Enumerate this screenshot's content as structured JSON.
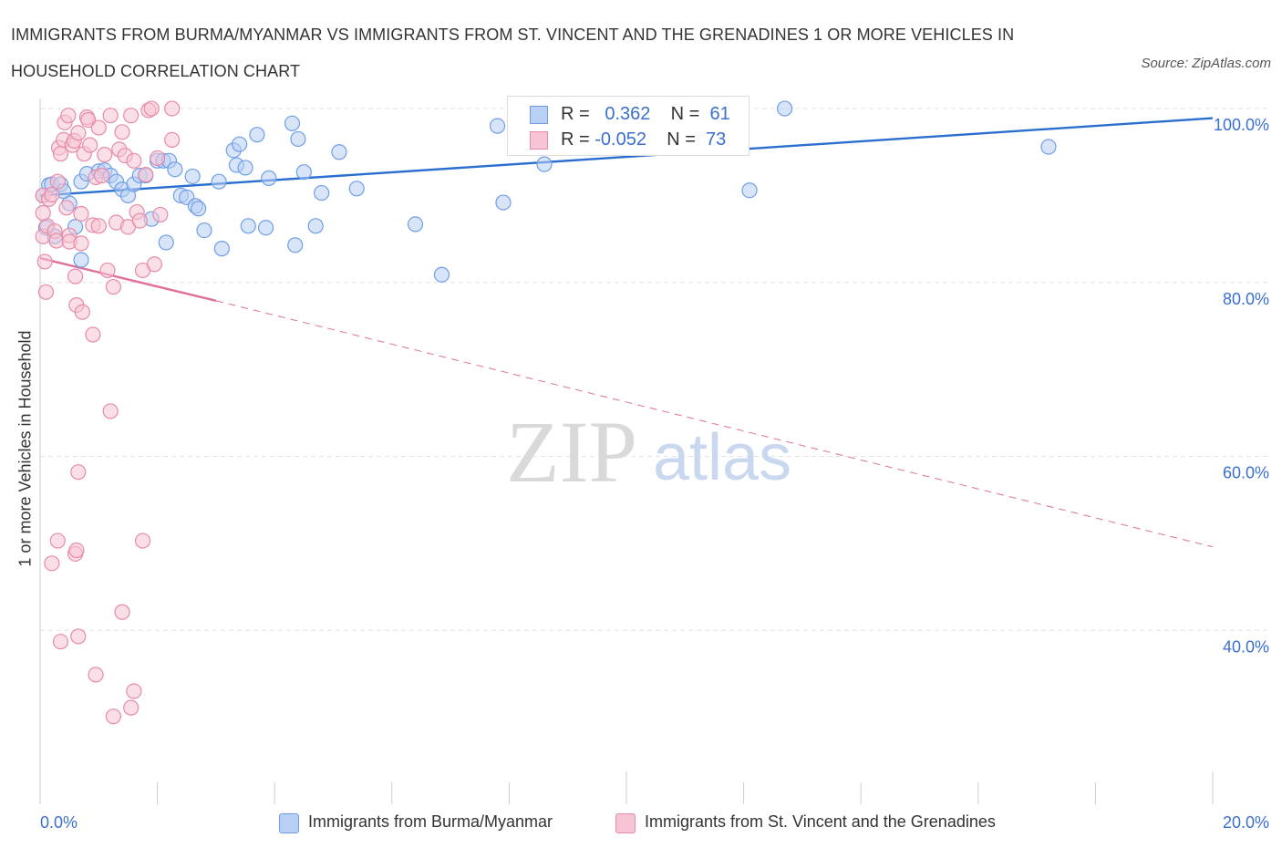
{
  "title": "IMMIGRANTS FROM BURMA/MYANMAR VS IMMIGRANTS FROM ST. VINCENT AND THE GRENADINES 1 OR MORE VEHICLES IN HOUSEHOLD CORRELATION CHART",
  "source": "Source: ZipAtlas.com",
  "watermark": {
    "zip": "ZIP",
    "atlas": "atlas"
  },
  "colors": {
    "blue": "#6f9ee6",
    "blue_fill": "#b8d0f4",
    "blue_line": "#2a6fd0",
    "pink": "#e88aa8",
    "pink_fill": "#f6c4d4",
    "pink_line": "#e0709a",
    "axis_text": "#3a6fd0"
  },
  "stats": [
    {
      "r_label": "R =",
      "r_value": "0.362",
      "n_label": "N =",
      "n_value": "61"
    },
    {
      "r_label": "R =",
      "r_value": "-0.052",
      "n_label": "N =",
      "n_value": "73"
    }
  ],
  "legend": [
    {
      "label": "Immigrants from Burma/Myanmar"
    },
    {
      "label": "Immigrants from St. Vincent and the Grenadines"
    }
  ],
  "chart_data": {
    "type": "scatter",
    "title": "IMMIGRANTS FROM BURMA/MYANMAR VS IMMIGRANTS FROM ST. VINCENT AND THE GRENADINES 1 OR MORE VEHICLES IN HOUSEHOLD CORRELATION CHART",
    "xlabel": "",
    "ylabel": "1 or more Vehicles in Household",
    "xlim": [
      0,
      20
    ],
    "ylim": [
      20,
      102
    ],
    "x_ticks": [
      {
        "value": 0,
        "label": "0.0%"
      },
      {
        "value": 20,
        "label": "20.0%"
      }
    ],
    "y_ticks": [
      {
        "value": 40,
        "label": "40.0%"
      },
      {
        "value": 60,
        "label": "60.0%"
      },
      {
        "value": 80,
        "label": "80.0%"
      },
      {
        "value": 100,
        "label": "100.0%"
      }
    ],
    "grid": true,
    "series": [
      {
        "name": "Immigrants from Burma/Myanmar",
        "points": [
          [
            0.1,
            86.3
          ],
          [
            0.15,
            91.2
          ],
          [
            0.2,
            91.3
          ],
          [
            0.25,
            85.3
          ],
          [
            0.35,
            91.3
          ],
          [
            0.5,
            89.1
          ],
          [
            0.6,
            86.4
          ],
          [
            0.7,
            82.6
          ],
          [
            0.7,
            91.6
          ],
          [
            0.8,
            92.5
          ],
          [
            1.0,
            92.8
          ],
          [
            1.1,
            92.9
          ],
          [
            1.2,
            92.3
          ],
          [
            1.3,
            91.6
          ],
          [
            1.4,
            90.7
          ],
          [
            1.5,
            90.0
          ],
          [
            1.6,
            91.3
          ],
          [
            1.7,
            92.3
          ],
          [
            1.8,
            92.3
          ],
          [
            1.9,
            87.3
          ],
          [
            2.0,
            94.0
          ],
          [
            2.1,
            94.0
          ],
          [
            2.15,
            84.6
          ],
          [
            2.2,
            94.0
          ],
          [
            2.3,
            93.0
          ],
          [
            2.4,
            90.0
          ],
          [
            2.5,
            89.8
          ],
          [
            2.6,
            92.2
          ],
          [
            2.65,
            88.8
          ],
          [
            2.7,
            88.5
          ],
          [
            2.8,
            86.0
          ],
          [
            3.05,
            91.6
          ],
          [
            3.1,
            83.9
          ],
          [
            3.3,
            95.2
          ],
          [
            3.35,
            93.5
          ],
          [
            3.4,
            95.9
          ],
          [
            3.5,
            93.2
          ],
          [
            3.55,
            86.5
          ],
          [
            3.7,
            97.0
          ],
          [
            3.85,
            86.3
          ],
          [
            3.9,
            92.0
          ],
          [
            4.3,
            98.3
          ],
          [
            4.35,
            84.3
          ],
          [
            4.4,
            96.5
          ],
          [
            4.5,
            92.7
          ],
          [
            4.7,
            86.5
          ],
          [
            4.8,
            90.3
          ],
          [
            5.1,
            95.0
          ],
          [
            5.4,
            90.8
          ],
          [
            6.4,
            86.7
          ],
          [
            6.85,
            80.9
          ],
          [
            7.8,
            98.0
          ],
          [
            7.9,
            89.2
          ],
          [
            8.6,
            93.6
          ],
          [
            9.9,
            100.0
          ],
          [
            11.1,
            99.2
          ],
          [
            12.1,
            90.6
          ],
          [
            12.7,
            100.0
          ],
          [
            17.2,
            95.6
          ],
          [
            0.05,
            90.0
          ],
          [
            0.4,
            90.5
          ]
        ]
      },
      {
        "name": "Immigrants from St. Vincent and the Grenadines",
        "points": [
          [
            0.05,
            90.0
          ],
          [
            0.05,
            85.3
          ],
          [
            0.08,
            82.4
          ],
          [
            0.1,
            78.9
          ],
          [
            0.12,
            86.5
          ],
          [
            0.15,
            89.6
          ],
          [
            0.2,
            90.1
          ],
          [
            0.25,
            85.9
          ],
          [
            0.28,
            84.8
          ],
          [
            0.3,
            91.6
          ],
          [
            0.32,
            95.5
          ],
          [
            0.35,
            94.8
          ],
          [
            0.4,
            96.4
          ],
          [
            0.42,
            98.4
          ],
          [
            0.45,
            88.6
          ],
          [
            0.5,
            85.4
          ],
          [
            0.5,
            84.7
          ],
          [
            0.55,
            95.8
          ],
          [
            0.58,
            96.3
          ],
          [
            0.6,
            80.7
          ],
          [
            0.62,
            77.4
          ],
          [
            0.65,
            97.2
          ],
          [
            0.7,
            84.5
          ],
          [
            0.72,
            76.6
          ],
          [
            0.75,
            94.8
          ],
          [
            0.8,
            99.0
          ],
          [
            0.82,
            98.7
          ],
          [
            0.85,
            95.8
          ],
          [
            0.9,
            86.6
          ],
          [
            0.9,
            74.0
          ],
          [
            0.95,
            92.1
          ],
          [
            1.0,
            97.8
          ],
          [
            1.0,
            86.5
          ],
          [
            1.05,
            92.3
          ],
          [
            1.1,
            94.7
          ],
          [
            1.15,
            81.4
          ],
          [
            1.2,
            99.2
          ],
          [
            1.25,
            79.5
          ],
          [
            1.3,
            86.9
          ],
          [
            1.35,
            95.3
          ],
          [
            1.4,
            97.3
          ],
          [
            1.45,
            94.6
          ],
          [
            1.5,
            86.4
          ],
          [
            1.55,
            99.2
          ],
          [
            1.6,
            94.0
          ],
          [
            1.65,
            88.1
          ],
          [
            1.7,
            87.1
          ],
          [
            1.75,
            81.4
          ],
          [
            1.8,
            92.4
          ],
          [
            1.85,
            99.8
          ],
          [
            1.9,
            100.0
          ],
          [
            1.95,
            82.1
          ],
          [
            2.0,
            94.3
          ],
          [
            2.05,
            87.8
          ],
          [
            2.25,
            96.4
          ],
          [
            2.25,
            100.0
          ],
          [
            0.2,
            47.7
          ],
          [
            0.3,
            50.3
          ],
          [
            0.35,
            38.7
          ],
          [
            0.6,
            48.8
          ],
          [
            0.62,
            49.2
          ],
          [
            0.65,
            39.3
          ],
          [
            0.65,
            58.2
          ],
          [
            0.95,
            34.9
          ],
          [
            1.2,
            65.2
          ],
          [
            1.25,
            30.1
          ],
          [
            1.4,
            42.1
          ],
          [
            1.55,
            31.1
          ],
          [
            1.6,
            33.0
          ],
          [
            1.75,
            50.3
          ],
          [
            0.48,
            99.2
          ],
          [
            0.7,
            87.9
          ],
          [
            0.05,
            88.0
          ]
        ]
      }
    ],
    "trend_lines": [
      {
        "series": "Immigrants from Burma/Myanmar",
        "x": [
          0,
          20
        ],
        "y": [
          90.0,
          98.9
        ],
        "style": "solid"
      },
      {
        "series": "Immigrants from St. Vincent and the Grenadines",
        "x": [
          0,
          3
        ],
        "y": [
          82.8,
          77.9
        ],
        "style": "solid"
      },
      {
        "series": "Immigrants from St. Vincent and the Grenadines",
        "x": [
          3,
          20
        ],
        "y": [
          77.9,
          49.6
        ],
        "style": "dashed"
      }
    ]
  }
}
